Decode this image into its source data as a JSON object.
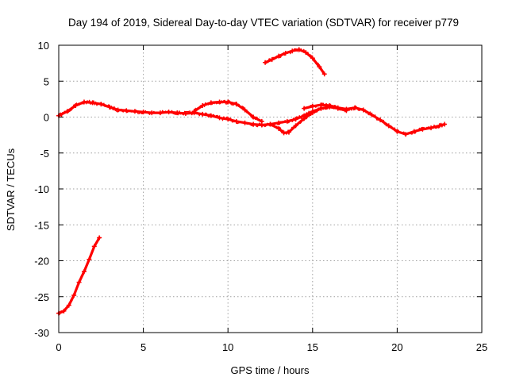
{
  "chart_data": {
    "type": "scatter",
    "title": "Day 194 of 2019, Sidereal Day-to-day VTEC variation (SDTVAR) for receiver p779",
    "xlabel": "GPS time / hours",
    "ylabel": "SDTVAR / TECUs",
    "xlim": [
      0,
      25
    ],
    "ylim": [
      -30,
      10
    ],
    "xticks": [
      0,
      5,
      10,
      15,
      20,
      25
    ],
    "yticks": [
      10,
      5,
      0,
      -5,
      -10,
      -15,
      -20,
      -25,
      -30
    ],
    "grid": true,
    "legend": "none",
    "colors": {
      "series": "#ff0000",
      "grid": "#a0a0a0",
      "frame": "#000000"
    },
    "series": [
      {
        "name": "arc-early-negative",
        "x": [
          0.0,
          0.3,
          0.6,
          0.9,
          1.2,
          1.5,
          1.8,
          2.1,
          2.4
        ],
        "y": [
          -27.3,
          -27.0,
          -26.2,
          -24.8,
          -23.0,
          -21.5,
          -19.8,
          -18.0,
          -16.8
        ]
      },
      {
        "name": "arc-main-a",
        "x": [
          0.0,
          0.5,
          1.0,
          1.5,
          2.0,
          2.5,
          3.0,
          3.5,
          4.0,
          4.5,
          5.0,
          5.5,
          6.0,
          6.5,
          7.0,
          7.5,
          8.0,
          8.5,
          9.0,
          9.5,
          10.0,
          10.5,
          11.0,
          11.5,
          12.0,
          12.5,
          13.0,
          13.5,
          14.0,
          14.5,
          15.0,
          15.5
        ],
        "y": [
          0.2,
          0.8,
          1.6,
          2.1,
          2.0,
          1.8,
          1.4,
          1.0,
          0.9,
          0.8,
          0.7,
          0.6,
          0.6,
          0.7,
          0.6,
          0.5,
          0.6,
          0.4,
          0.2,
          -0.1,
          -0.3,
          -0.6,
          -0.8,
          -1.0,
          -1.1,
          -1.0,
          -0.8,
          -0.6,
          -0.3,
          0.2,
          0.8,
          1.2
        ]
      },
      {
        "name": "arc-hump",
        "x": [
          8.0,
          8.5,
          9.0,
          9.5,
          10.0,
          10.5,
          11.0,
          11.5,
          12.0
        ],
        "y": [
          0.8,
          1.6,
          2.0,
          2.1,
          2.1,
          1.8,
          1.0,
          0.0,
          -0.6
        ]
      },
      {
        "name": "arc-dip",
        "x": [
          12.5,
          13.0,
          13.3,
          13.6,
          14.0,
          14.5,
          15.0,
          15.5,
          16.0,
          16.5,
          17.0
        ],
        "y": [
          -1.0,
          -1.6,
          -2.2,
          -2.1,
          -1.2,
          -0.2,
          0.6,
          1.2,
          1.4,
          1.2,
          0.9
        ]
      },
      {
        "name": "arc-late",
        "x": [
          14.5,
          15.0,
          15.5,
          16.0,
          16.5,
          17.0,
          17.5,
          18.0,
          18.5,
          19.0,
          19.5,
          20.0,
          20.5,
          21.0,
          21.5,
          22.0,
          22.5,
          22.8
        ],
        "y": [
          1.2,
          1.5,
          1.7,
          1.6,
          1.3,
          1.1,
          1.3,
          1.0,
          0.3,
          -0.4,
          -1.2,
          -2.0,
          -2.4,
          -2.0,
          -1.7,
          -1.5,
          -1.2,
          -1.0
        ]
      },
      {
        "name": "arc-high",
        "x": [
          12.2,
          12.6,
          13.0,
          13.4,
          13.8,
          14.2,
          14.6,
          15.0,
          15.4,
          15.7
        ],
        "y": [
          7.6,
          8.0,
          8.5,
          8.9,
          9.2,
          9.4,
          9.0,
          8.2,
          7.0,
          6.0
        ]
      }
    ]
  }
}
